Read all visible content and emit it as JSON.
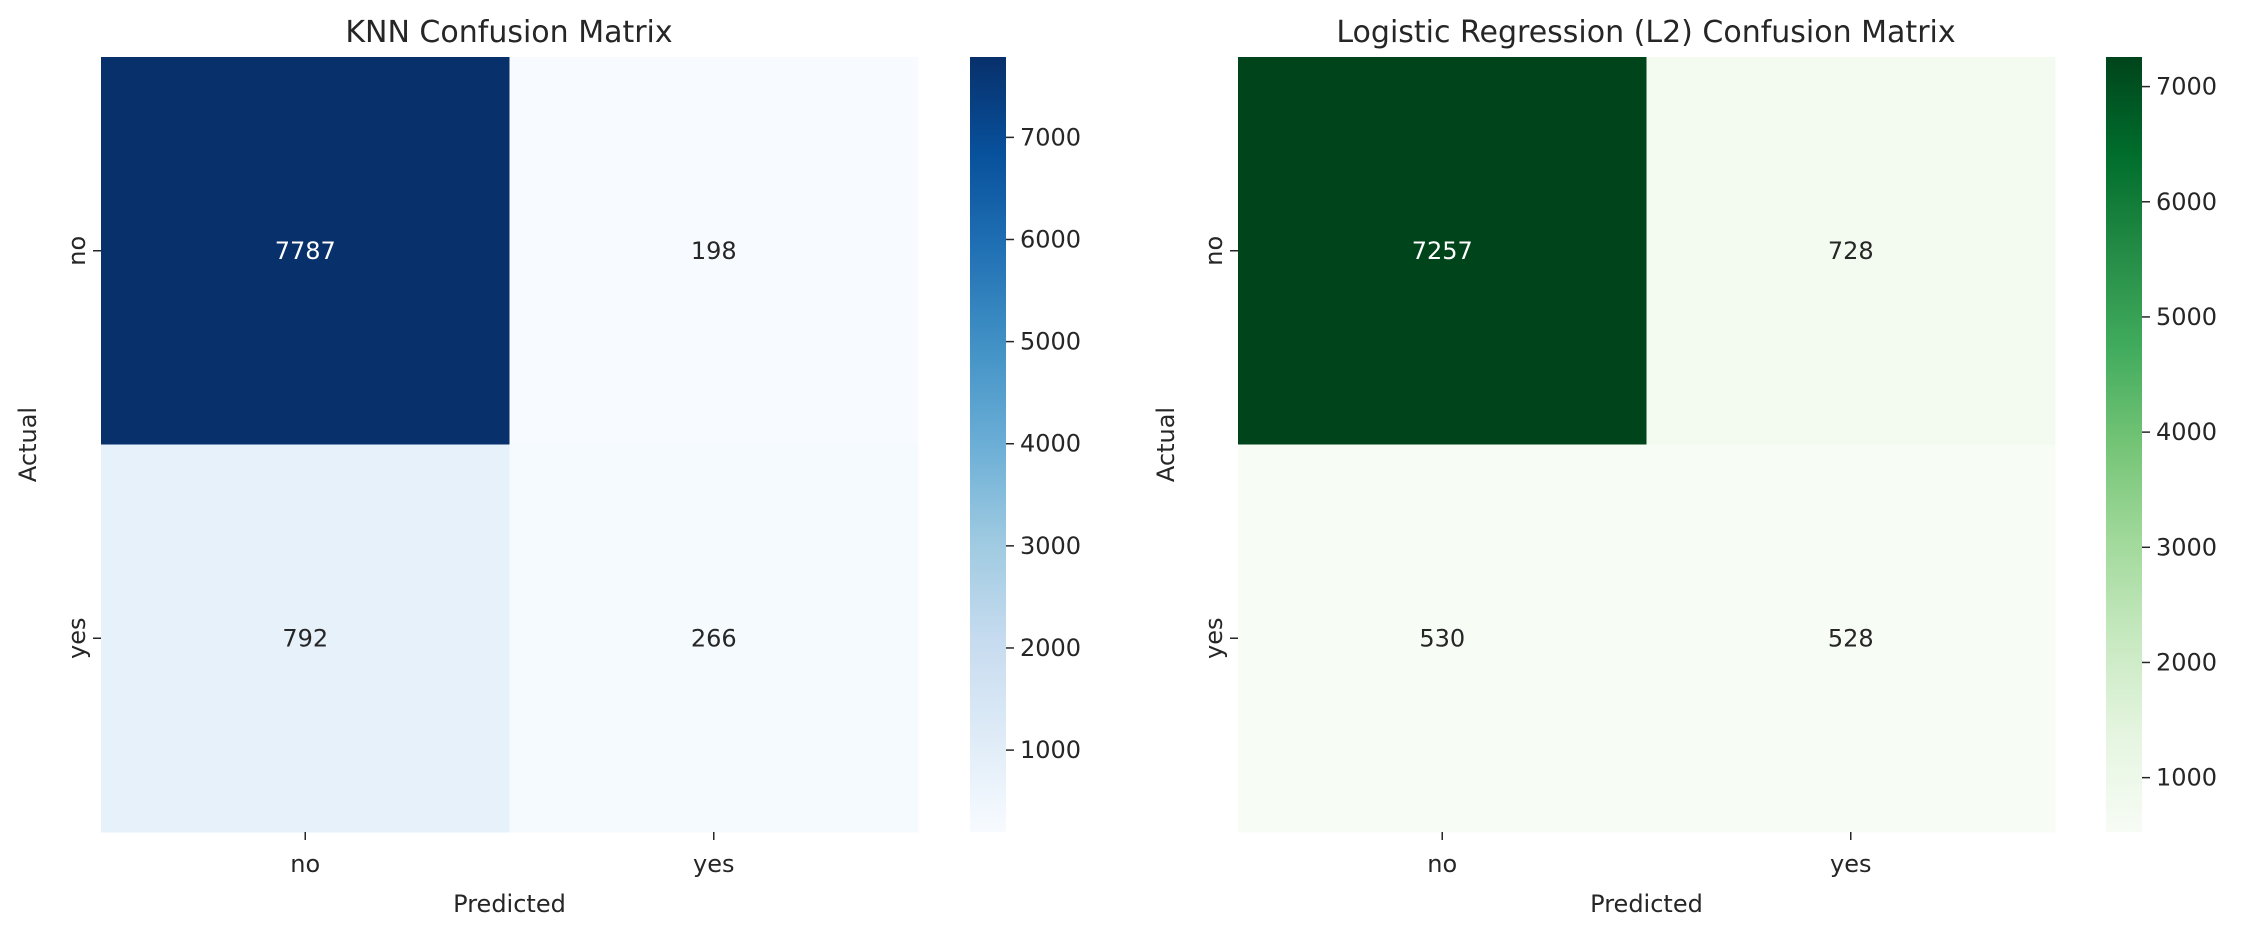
{
  "chart_data": [
    {
      "type": "heatmap",
      "title": "KNN Confusion Matrix",
      "xlabel": "Predicted",
      "ylabel": "Actual",
      "x_categories": [
        "no",
        "yes"
      ],
      "y_categories": [
        "no",
        "yes"
      ],
      "values": [
        [
          7787,
          198
        ],
        [
          792,
          266
        ]
      ],
      "colormap": "Blues",
      "colorbar": {
        "min": 198,
        "max": 7787,
        "ticks": [
          1000,
          2000,
          3000,
          4000,
          5000,
          6000,
          7000
        ]
      },
      "colors": [
        "#f7fbff",
        "#deebf7",
        "#c6dbef",
        "#9ecae1",
        "#6baed6",
        "#4292c6",
        "#2171b5",
        "#08519c",
        "#08306b"
      ]
    },
    {
      "type": "heatmap",
      "title": "Logistic Regression (L2) Confusion Matrix",
      "xlabel": "Predicted",
      "ylabel": "Actual",
      "x_categories": [
        "no",
        "yes"
      ],
      "y_categories": [
        "no",
        "yes"
      ],
      "values": [
        [
          7257,
          728
        ],
        [
          530,
          528
        ]
      ],
      "colormap": "Greens",
      "colorbar": {
        "min": 528,
        "max": 7257,
        "ticks": [
          1000,
          2000,
          3000,
          4000,
          5000,
          6000,
          7000
        ]
      },
      "colors": [
        "#f7fcf5",
        "#e5f5e0",
        "#c7e9c0",
        "#a1d99b",
        "#74c476",
        "#41ab5d",
        "#238b45",
        "#006d2c",
        "#00441b"
      ]
    }
  ]
}
